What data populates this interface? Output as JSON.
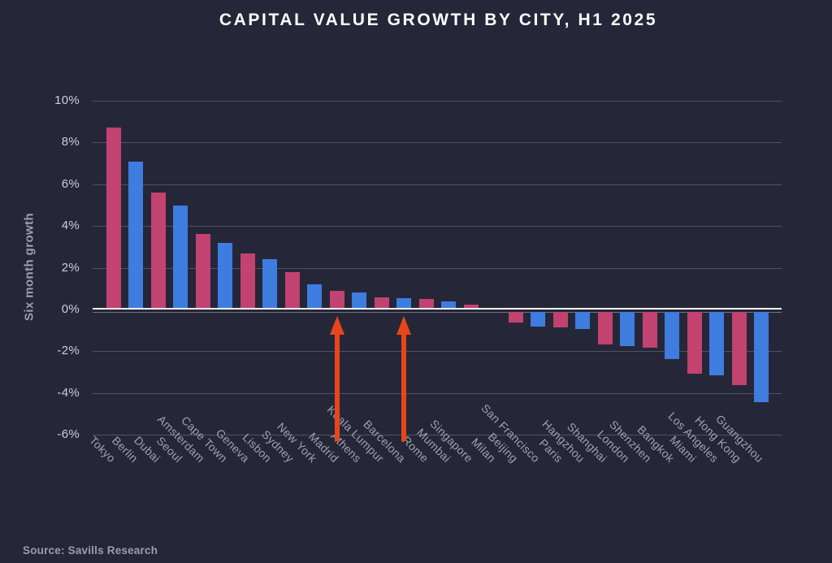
{
  "colors": {
    "background": "#252738",
    "title_text": "#ffffff",
    "axis_title_text": "#9aa0b1",
    "ytick_text": "#ccced7",
    "xtick_text": "#9da1b2",
    "source_text": "#9b9eaa"
  },
  "source": {
    "text": "Source: Savills Research"
  },
  "chart_data": {
    "type": "bar",
    "title": "CAPITAL VALUE GROWTH BY CITY, H1 2025",
    "ylabel": "Six month growth",
    "xlabel": "",
    "categories": [
      "Tokyo",
      "Berlin",
      "Dubai",
      "Seoul",
      "Amsterdam",
      "Cape Town",
      "Geneva",
      "Lisbon",
      "Sydney",
      "New York",
      "Madrid",
      "Athens",
      "Kuala Lumpur",
      "Barcelona",
      "Rome",
      "Mumbai",
      "Singapore",
      "Milan",
      "Beijing",
      "San Francisco",
      "Paris",
      "Hangzhou",
      "Shanghai",
      "London",
      "Shenzhen",
      "Bangkok",
      "Miami",
      "Los Angeles",
      "Hong Kong",
      "Guangzhou"
    ],
    "values": [
      8.7,
      7.1,
      5.6,
      5.0,
      3.6,
      3.2,
      2.7,
      2.4,
      1.8,
      1.2,
      0.9,
      0.8,
      0.6,
      0.55,
      0.5,
      0.4,
      0.25,
      0.0,
      -0.5,
      -0.7,
      -0.75,
      -0.8,
      -1.55,
      -1.65,
      -1.7,
      -2.25,
      -2.95,
      -3.05,
      -3.5,
      -4.3
    ],
    "bar_colors": [
      "#c24270",
      "#3e7ce0"
    ],
    "bar_color_pattern": "alternating pink/blue",
    "yticks": [
      10,
      8,
      6,
      4,
      2,
      0,
      -2,
      -4,
      -6
    ],
    "ytick_suffix": "%",
    "ylim": [
      -6.5,
      10.5
    ],
    "grid": true,
    "legend": false,
    "gridline_color": "#4e5166",
    "zero_line_color": "#f4f4f7",
    "zero_subline_color": "rgba(200,203,216,0.45)",
    "annotations": [
      {
        "type": "arrow",
        "category": "Madrid",
        "direction": "up",
        "color": "#e84619"
      },
      {
        "type": "arrow",
        "category": "Barcelona",
        "direction": "up",
        "color": "#e84619"
      }
    ],
    "source": "Source: Savills Research"
  }
}
